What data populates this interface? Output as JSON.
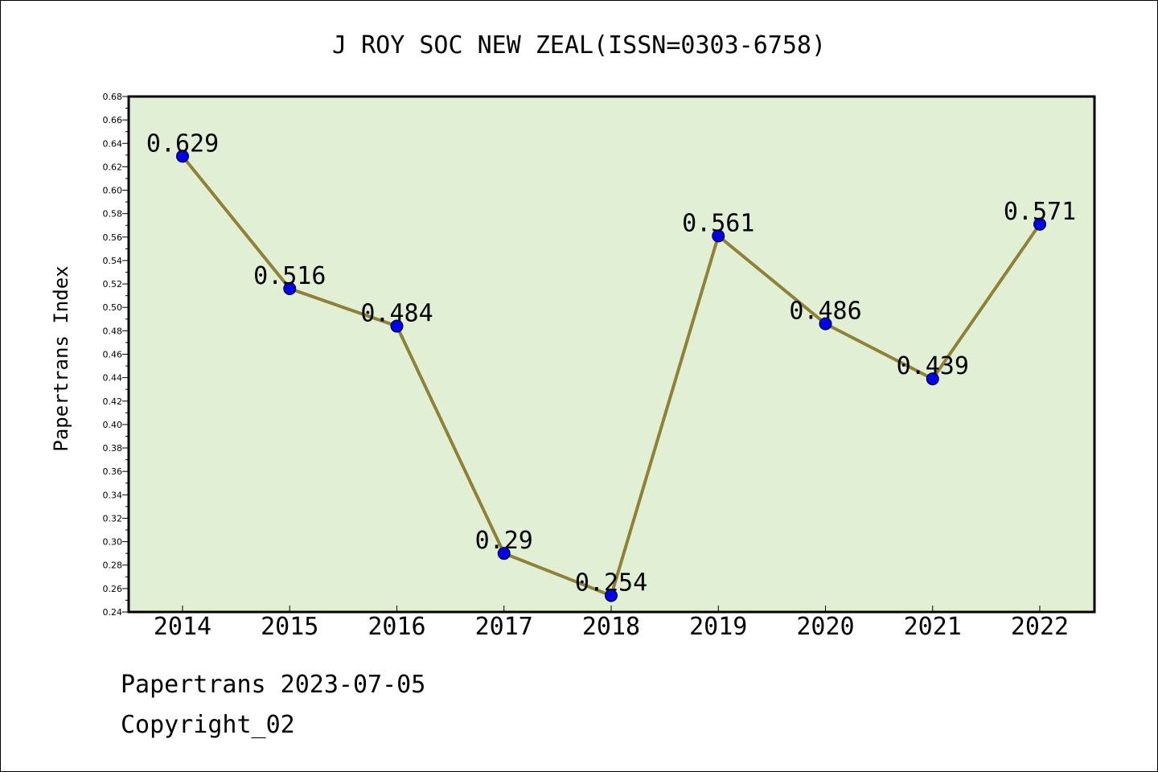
{
  "chart_data": {
    "type": "line",
    "title": "J ROY SOC NEW ZEAL(ISSN=0303-6758)",
    "xlabel": "",
    "ylabel": "Papertrans Index",
    "categories": [
      "2014",
      "2015",
      "2016",
      "2017",
      "2018",
      "2019",
      "2020",
      "2021",
      "2022"
    ],
    "series": [
      {
        "values": [
          0.629,
          0.516,
          0.484,
          0.29,
          0.254,
          0.561,
          0.486,
          0.439,
          0.571
        ],
        "labels": [
          "0.629",
          "0.516",
          "0.484",
          "0.29",
          "0.254",
          "0.561",
          "0.486",
          "0.439",
          "0.571"
        ]
      }
    ],
    "ylim": [
      0.24,
      0.68
    ],
    "yticks": [
      "0.24",
      "0.26",
      "0.28",
      "0.30",
      "0.32",
      "0.34",
      "0.36",
      "0.38",
      "0.40",
      "0.42",
      "0.44",
      "0.46",
      "0.48",
      "0.50",
      "0.52",
      "0.54",
      "0.56",
      "0.58",
      "0.60",
      "0.62",
      "0.64",
      "0.66",
      "0.68"
    ],
    "grid": false,
    "colors": {
      "plot_bg": "#e1efd5",
      "line": "#8f8236",
      "marker": "#0000ee",
      "axis": "#000000"
    }
  },
  "footer": {
    "line1": "Papertrans 2023-07-05",
    "line2": "Copyright_02"
  }
}
